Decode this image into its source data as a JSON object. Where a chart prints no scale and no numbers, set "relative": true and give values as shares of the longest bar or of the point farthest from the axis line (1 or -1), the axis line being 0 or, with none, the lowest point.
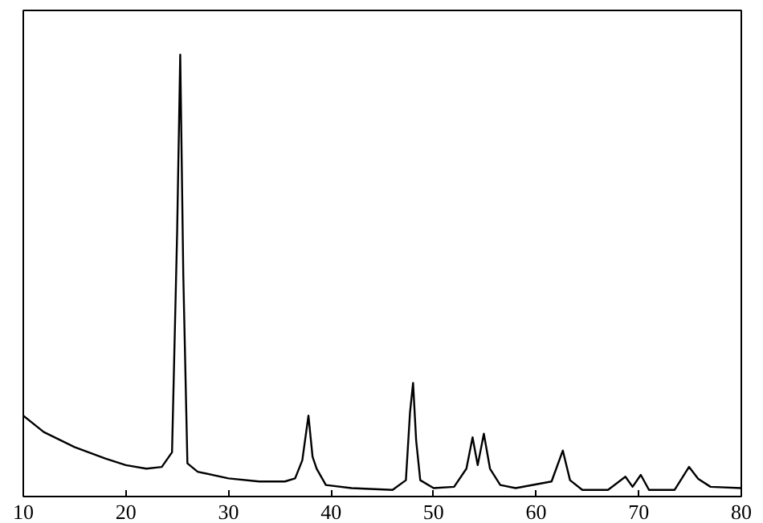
{
  "chart_data": {
    "type": "line",
    "relative": true,
    "color": "#000000",
    "xlim": [
      10,
      80
    ],
    "xticks": [
      10,
      20,
      30,
      40,
      50,
      60,
      70,
      80
    ],
    "tick_labels": "x",
    "grid": false,
    "x": [
      10,
      12,
      15,
      18,
      20,
      22,
      23.5,
      24.5,
      25.0,
      25.3,
      25.6,
      26,
      27,
      30,
      33,
      35.5,
      36.5,
      37.2,
      37.8,
      38.2,
      38.6,
      39.5,
      42,
      46,
      47.3,
      47.7,
      48.0,
      48.3,
      48.7,
      50,
      52,
      53.2,
      53.8,
      54.3,
      54.9,
      55.5,
      56.5,
      58,
      61.5,
      62.6,
      63.3,
      64.5,
      67,
      68.7,
      69.4,
      70.2,
      71,
      73.5,
      74.9,
      75.8,
      77,
      80
    ],
    "values": [
      0.183,
      0.146,
      0.112,
      0.086,
      0.071,
      0.063,
      0.067,
      0.1,
      0.6,
      1.0,
      0.5,
      0.075,
      0.056,
      0.041,
      0.034,
      0.034,
      0.041,
      0.082,
      0.183,
      0.09,
      0.063,
      0.026,
      0.019,
      0.015,
      0.037,
      0.19,
      0.257,
      0.127,
      0.037,
      0.019,
      0.022,
      0.063,
      0.134,
      0.071,
      0.142,
      0.063,
      0.026,
      0.019,
      0.034,
      0.104,
      0.037,
      0.015,
      0.015,
      0.045,
      0.022,
      0.049,
      0.015,
      0.015,
      0.067,
      0.04,
      0.022,
      0.019
    ]
  }
}
